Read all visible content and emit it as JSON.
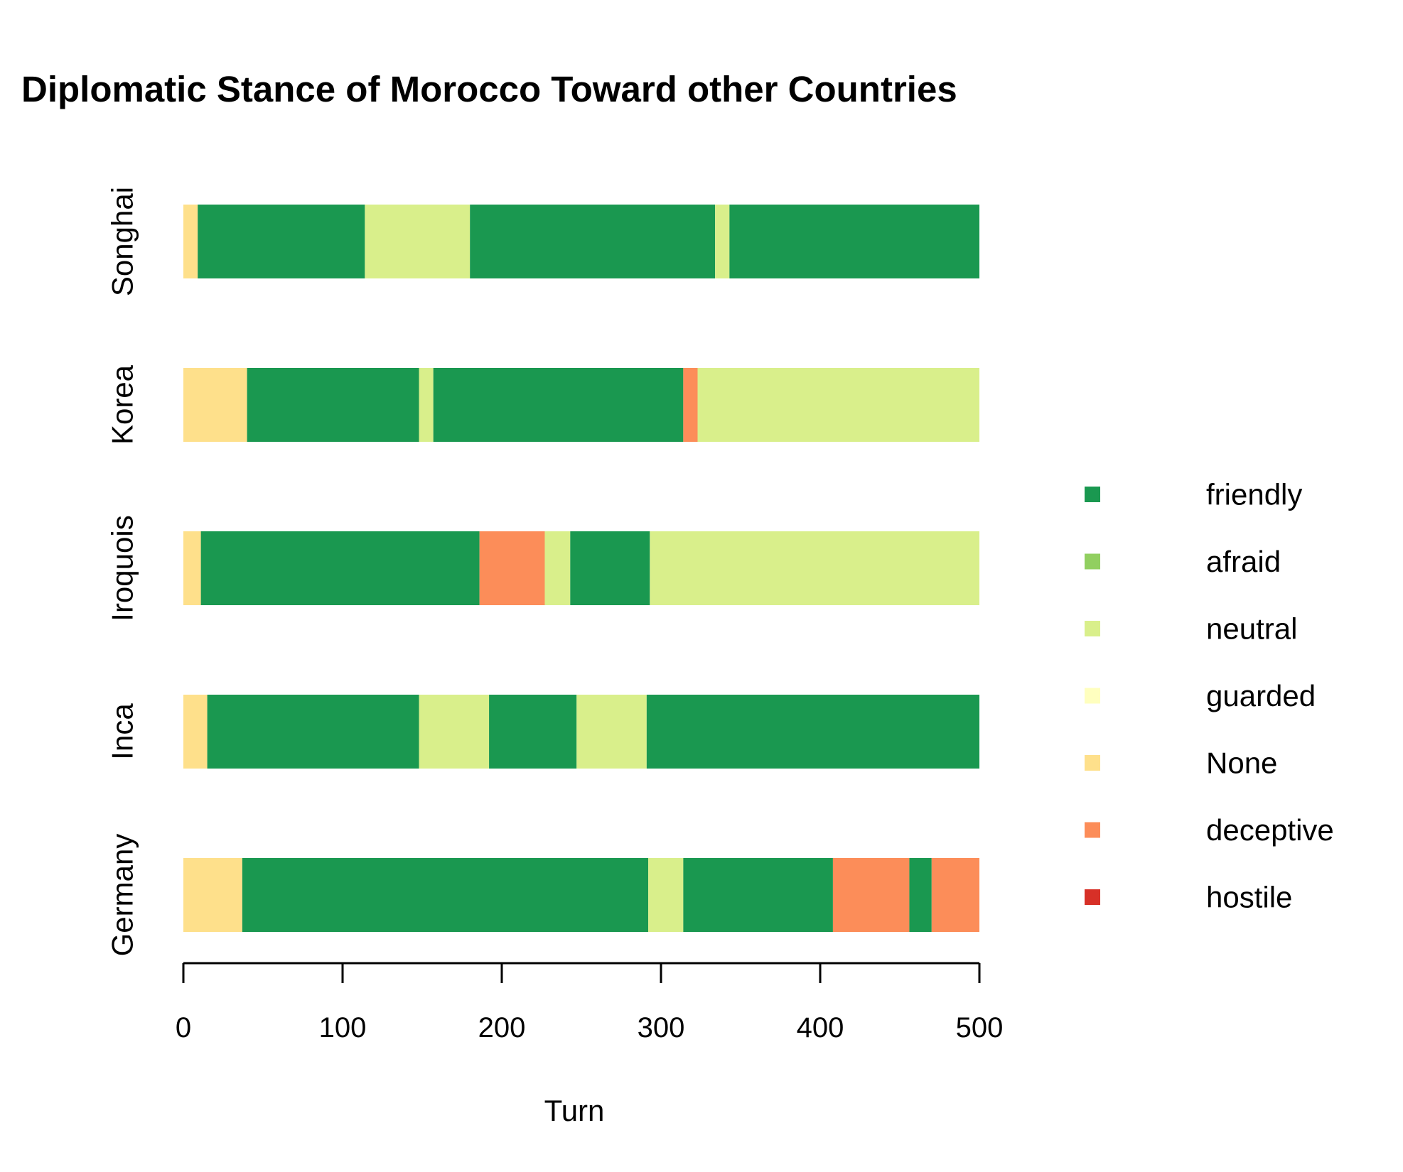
{
  "chart_data": {
    "type": "bar",
    "orientation": "horizontal",
    "stacked": true,
    "title": "Diplomatic Stance of Morocco Toward other Countries",
    "xlabel": "Turn",
    "ylabel": "",
    "xlim": [
      0,
      500
    ],
    "xticks": [
      0,
      100,
      200,
      300,
      400,
      500
    ],
    "grid": false,
    "legend_position": "right",
    "stances": [
      {
        "name": "friendly",
        "color": "#1a9850"
      },
      {
        "name": "afraid",
        "color": "#91cf60"
      },
      {
        "name": "neutral",
        "color": "#d9ef8b"
      },
      {
        "name": "guarded",
        "color": "#ffffbf"
      },
      {
        "name": "None",
        "color": "#fee08b"
      },
      {
        "name": "deceptive",
        "color": "#fc8d59"
      },
      {
        "name": "hostile",
        "color": "#d73027"
      }
    ],
    "categories": [
      "Songhai",
      "Korea",
      "Iroquois",
      "Inca",
      "Germany"
    ],
    "countries": [
      {
        "name": "Songhai",
        "segments": [
          {
            "stance": "None",
            "start": 0,
            "end": 9
          },
          {
            "stance": "friendly",
            "start": 9,
            "end": 114
          },
          {
            "stance": "neutral",
            "start": 114,
            "end": 180
          },
          {
            "stance": "friendly",
            "start": 180,
            "end": 334
          },
          {
            "stance": "neutral",
            "start": 334,
            "end": 343
          },
          {
            "stance": "friendly",
            "start": 343,
            "end": 500
          }
        ]
      },
      {
        "name": "Korea",
        "segments": [
          {
            "stance": "None",
            "start": 0,
            "end": 40
          },
          {
            "stance": "friendly",
            "start": 40,
            "end": 148
          },
          {
            "stance": "neutral",
            "start": 148,
            "end": 157
          },
          {
            "stance": "friendly",
            "start": 157,
            "end": 314
          },
          {
            "stance": "deceptive",
            "start": 314,
            "end": 323
          },
          {
            "stance": "neutral",
            "start": 323,
            "end": 500
          }
        ]
      },
      {
        "name": "Iroquois",
        "segments": [
          {
            "stance": "None",
            "start": 0,
            "end": 11
          },
          {
            "stance": "friendly",
            "start": 11,
            "end": 186
          },
          {
            "stance": "deceptive",
            "start": 186,
            "end": 227
          },
          {
            "stance": "neutral",
            "start": 227,
            "end": 243
          },
          {
            "stance": "friendly",
            "start": 243,
            "end": 293
          },
          {
            "stance": "neutral",
            "start": 293,
            "end": 500
          }
        ]
      },
      {
        "name": "Inca",
        "segments": [
          {
            "stance": "None",
            "start": 0,
            "end": 15
          },
          {
            "stance": "friendly",
            "start": 15,
            "end": 148
          },
          {
            "stance": "neutral",
            "start": 148,
            "end": 192
          },
          {
            "stance": "friendly",
            "start": 192,
            "end": 247
          },
          {
            "stance": "neutral",
            "start": 247,
            "end": 291
          },
          {
            "stance": "friendly",
            "start": 291,
            "end": 500
          }
        ]
      },
      {
        "name": "Germany",
        "segments": [
          {
            "stance": "None",
            "start": 0,
            "end": 37
          },
          {
            "stance": "friendly",
            "start": 37,
            "end": 292
          },
          {
            "stance": "neutral",
            "start": 292,
            "end": 314
          },
          {
            "stance": "friendly",
            "start": 314,
            "end": 408
          },
          {
            "stance": "deceptive",
            "start": 408,
            "end": 456
          },
          {
            "stance": "friendly",
            "start": 456,
            "end": 470
          },
          {
            "stance": "deceptive",
            "start": 470,
            "end": 500
          }
        ]
      }
    ]
  }
}
